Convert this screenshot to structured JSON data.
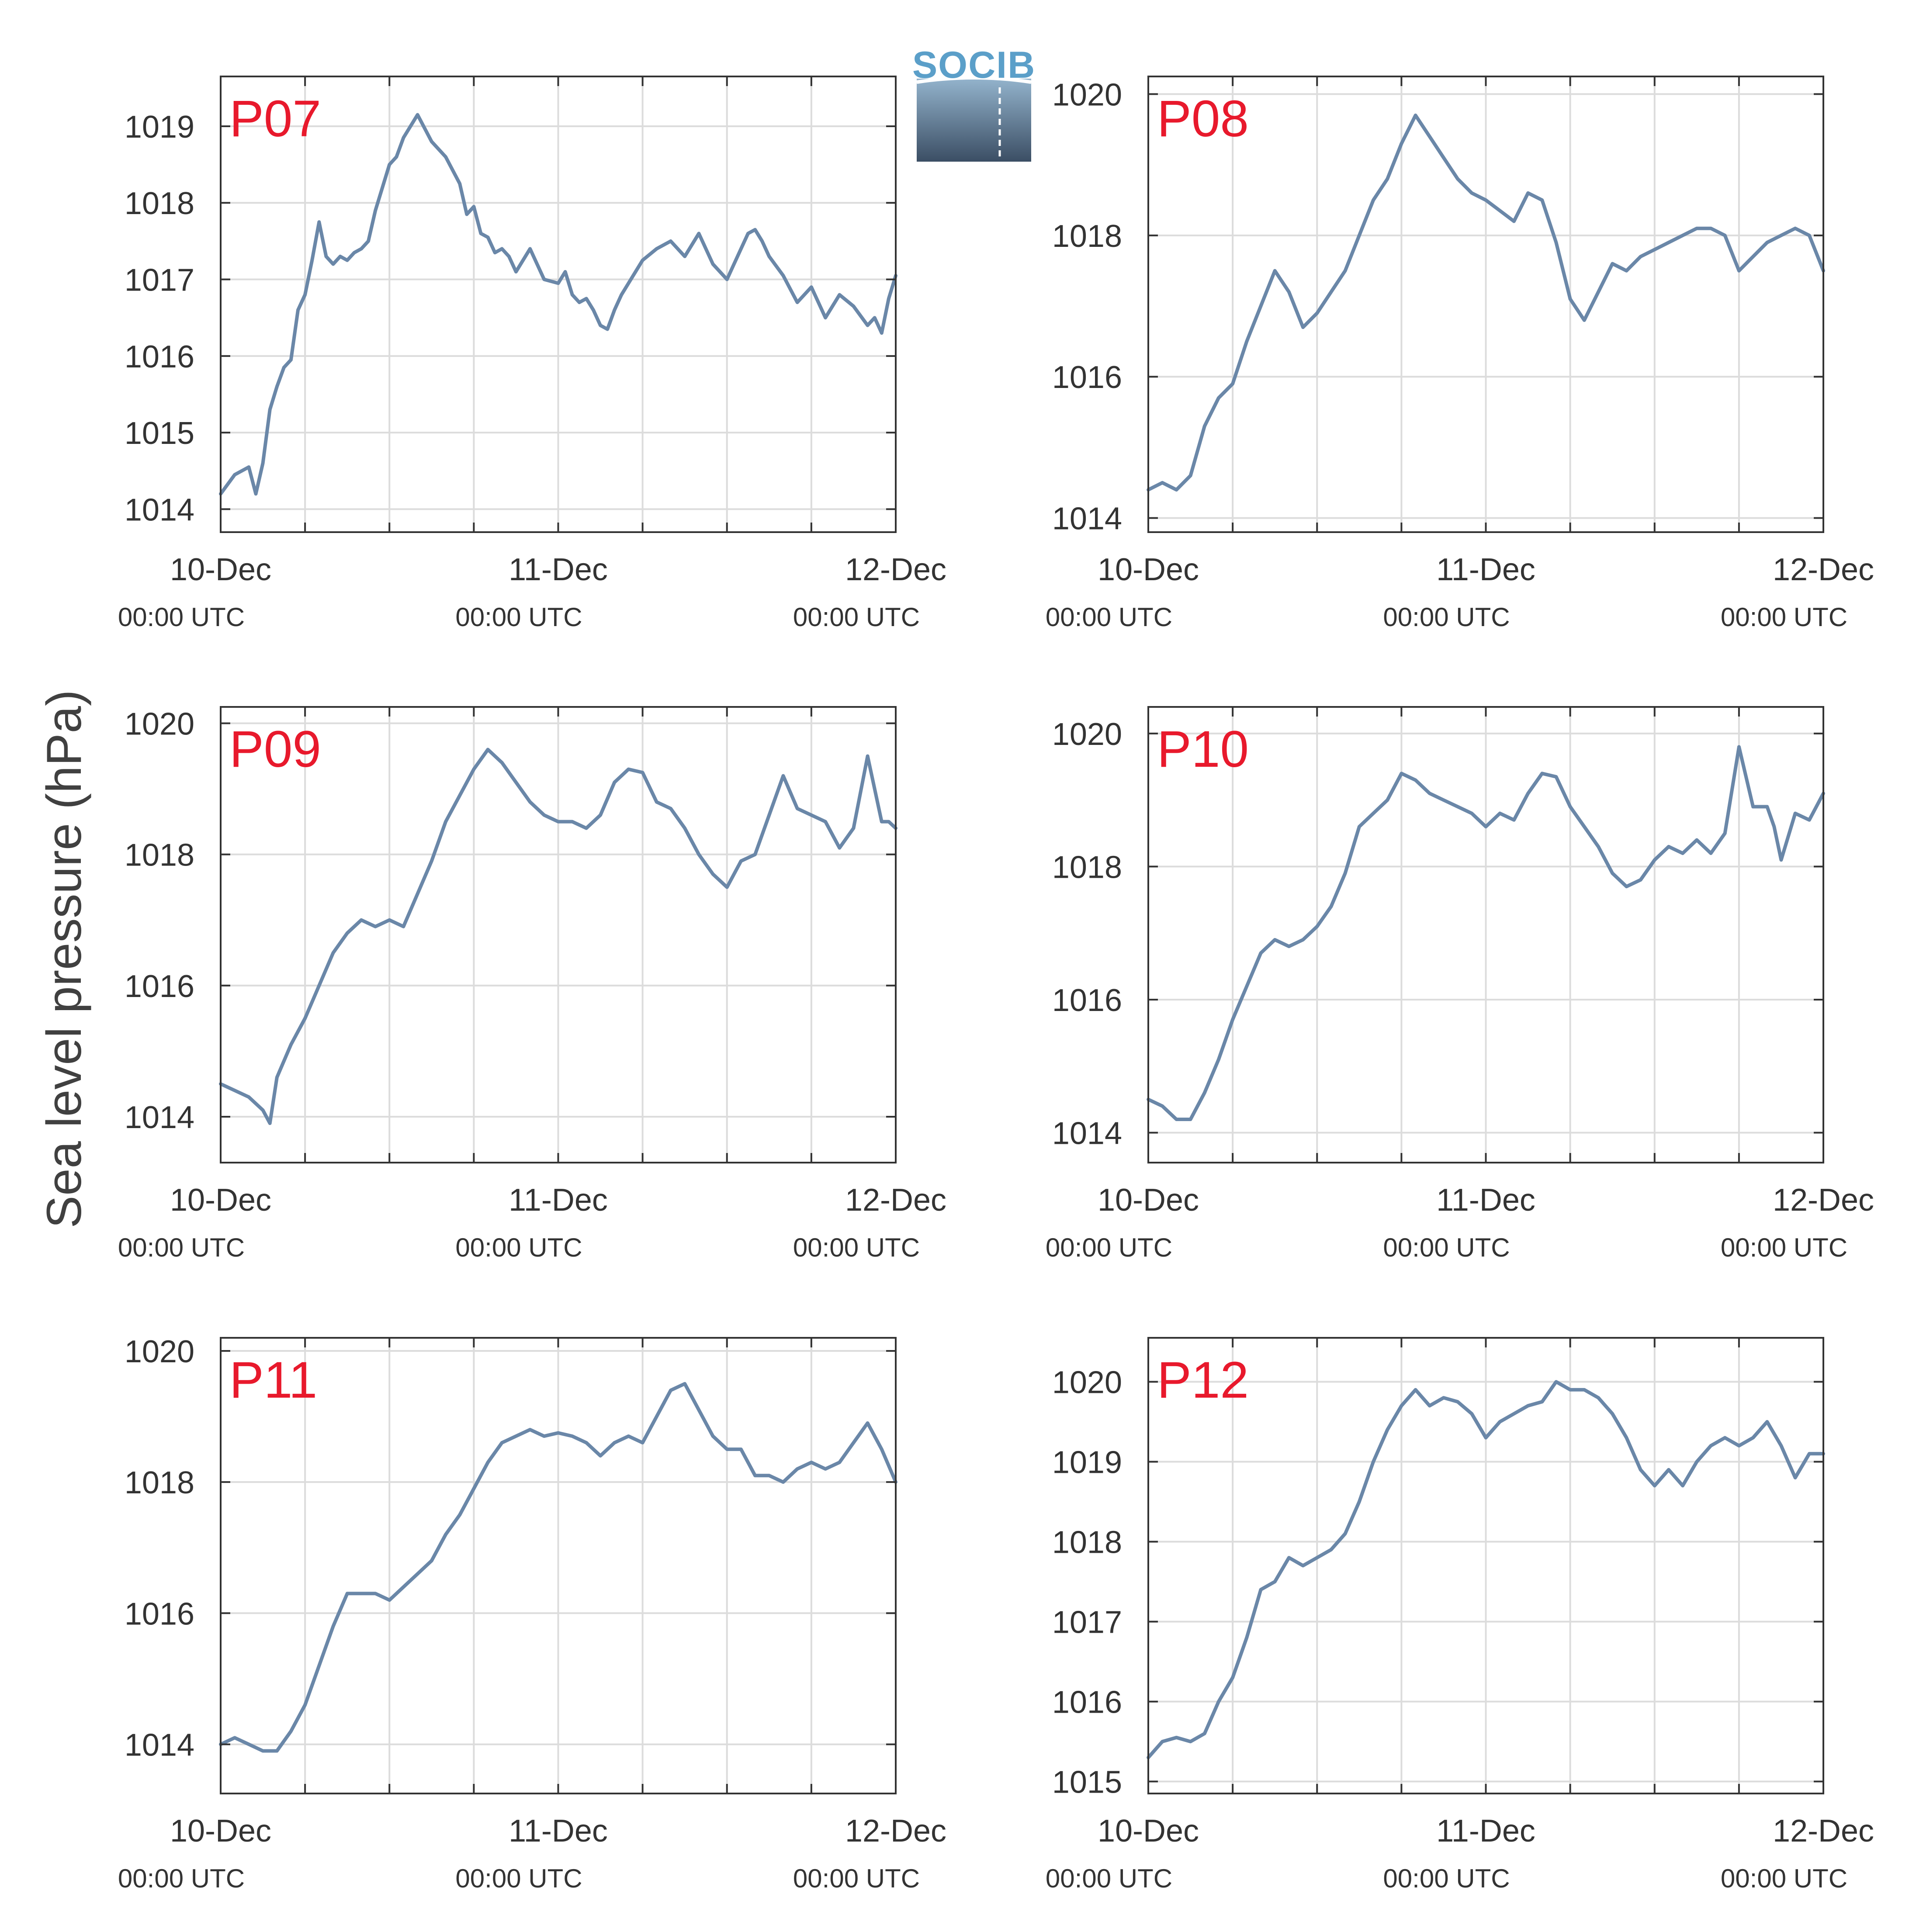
{
  "ylabel": "Sea level pressure (hPa)",
  "logo_text": "SOCIB",
  "colors": {
    "series": "#6a87a8",
    "panel_label": "#e8192c",
    "grid": "#dcdcdc",
    "axis": "#333333"
  },
  "chart_data": [
    {
      "type": "line",
      "label": "P07",
      "x_ticks": [
        {
          "date": "10-Dec",
          "time": "00:00 UTC"
        },
        {
          "date": "11-Dec",
          "time": "00:00 UTC"
        },
        {
          "date": "12-Dec",
          "time": "00:00 UTC"
        }
      ],
      "xlim_hours": [
        0,
        48
      ],
      "yticks": [
        1014,
        1015,
        1016,
        1017,
        1018,
        1019
      ],
      "ylim": [
        1013.7,
        1019.65
      ],
      "x": [
        0,
        1,
        2,
        2.5,
        3,
        3.5,
        4,
        4.5,
        5,
        5.5,
        6,
        6.5,
        7,
        7.5,
        8,
        8.5,
        9,
        9.5,
        10,
        10.5,
        11,
        11.5,
        12,
        12.5,
        13,
        14,
        15,
        16,
        17,
        17.5,
        18,
        18.5,
        19,
        19.5,
        20,
        20.5,
        21,
        22,
        23,
        24,
        24.5,
        25,
        25.5,
        26,
        26.5,
        27,
        27.5,
        28,
        28.5,
        29,
        29.5,
        30,
        31,
        32,
        33,
        34,
        35,
        35.5,
        36,
        36.5,
        37,
        37.5,
        38,
        38.5,
        39,
        40,
        41,
        42,
        43,
        44,
        45,
        46,
        46.5,
        47,
        47.5,
        48
      ],
      "y": [
        1014.2,
        1014.45,
        1014.55,
        1014.2,
        1014.6,
        1015.3,
        1015.6,
        1015.85,
        1015.95,
        1016.6,
        1016.8,
        1017.25,
        1017.75,
        1017.3,
        1017.2,
        1017.3,
        1017.25,
        1017.35,
        1017.4,
        1017.5,
        1017.9,
        1018.2,
        1018.5,
        1018.6,
        1018.85,
        1019.15,
        1018.8,
        1018.6,
        1018.25,
        1017.85,
        1017.95,
        1017.6,
        1017.55,
        1017.35,
        1017.4,
        1017.3,
        1017.1,
        1017.4,
        1017.0,
        1016.95,
        1017.1,
        1016.8,
        1016.7,
        1016.75,
        1016.6,
        1016.4,
        1016.35,
        1016.6,
        1016.8,
        1016.95,
        1017.1,
        1017.25,
        1017.4,
        1017.5,
        1017.3,
        1017.6,
        1017.2,
        1017.1,
        1017.0,
        1017.2,
        1017.4,
        1017.6,
        1017.65,
        1017.5,
        1017.3,
        1017.05,
        1016.7,
        1016.9,
        1016.5,
        1016.8,
        1016.65,
        1016.4,
        1016.5,
        1016.3,
        1016.75,
        1017.05
      ]
    },
    {
      "type": "line",
      "label": "P08",
      "x_ticks": [
        {
          "date": "10-Dec",
          "time": "00:00 UTC"
        },
        {
          "date": "11-Dec",
          "time": "00:00 UTC"
        },
        {
          "date": "12-Dec",
          "time": "00:00 UTC"
        }
      ],
      "xlim_hours": [
        0,
        48
      ],
      "yticks": [
        1014,
        1016,
        1018,
        1020
      ],
      "ylim": [
        1013.8,
        1020.25
      ],
      "x": [
        0,
        1,
        2,
        3,
        4,
        5,
        6,
        7,
        8,
        9,
        10,
        11,
        12,
        13,
        14,
        15,
        16,
        17,
        18,
        19,
        20,
        21,
        22,
        23,
        24,
        25,
        26,
        27,
        28,
        29,
        30,
        31,
        32,
        33,
        34,
        35,
        36,
        37,
        38,
        39,
        40,
        41,
        42,
        43,
        44,
        45,
        46,
        47,
        48
      ],
      "y": [
        1014.4,
        1014.5,
        1014.4,
        1014.6,
        1015.3,
        1015.7,
        1015.9,
        1016.5,
        1017.0,
        1017.5,
        1017.2,
        1016.7,
        1016.9,
        1017.2,
        1017.5,
        1018.0,
        1018.5,
        1018.8,
        1019.3,
        1019.7,
        1019.4,
        1019.1,
        1018.8,
        1018.6,
        1018.5,
        1018.35,
        1018.2,
        1018.6,
        1018.5,
        1017.9,
        1017.1,
        1016.8,
        1017.2,
        1017.6,
        1017.5,
        1017.7,
        1017.8,
        1017.9,
        1018.0,
        1018.1,
        1018.1,
        1018.0,
        1017.5,
        1017.7,
        1017.9,
        1018.0,
        1018.1,
        1018.0,
        1017.5
      ]
    },
    {
      "type": "line",
      "label": "P09",
      "x_ticks": [
        {
          "date": "10-Dec",
          "time": "00:00 UTC"
        },
        {
          "date": "11-Dec",
          "time": "00:00 UTC"
        },
        {
          "date": "12-Dec",
          "time": "00:00 UTC"
        }
      ],
      "xlim_hours": [
        0,
        48
      ],
      "yticks": [
        1014,
        1016,
        1018,
        1020
      ],
      "ylim": [
        1013.3,
        1020.25
      ],
      "x": [
        0,
        1,
        2,
        3,
        3.5,
        4,
        5,
        6,
        7,
        8,
        9,
        10,
        11,
        12,
        13,
        14,
        15,
        16,
        17,
        18,
        19,
        20,
        21,
        22,
        23,
        24,
        25,
        26,
        27,
        28,
        29,
        30,
        31,
        32,
        33,
        34,
        35,
        36,
        37,
        38,
        39,
        40,
        41,
        42,
        43,
        44,
        45,
        46,
        47,
        47.5,
        48
      ],
      "y": [
        1014.5,
        1014.4,
        1014.3,
        1014.1,
        1013.9,
        1014.6,
        1015.1,
        1015.5,
        1016.0,
        1016.5,
        1016.8,
        1017.0,
        1016.9,
        1017.0,
        1016.9,
        1017.4,
        1017.9,
        1018.5,
        1018.9,
        1019.3,
        1019.6,
        1019.4,
        1019.1,
        1018.8,
        1018.6,
        1018.5,
        1018.5,
        1018.4,
        1018.6,
        1019.1,
        1019.3,
        1019.25,
        1018.8,
        1018.7,
        1018.4,
        1018.0,
        1017.7,
        1017.5,
        1017.9,
        1018.0,
        1018.6,
        1019.2,
        1018.7,
        1018.6,
        1018.5,
        1018.1,
        1018.4,
        1019.5,
        1018.5,
        1018.5,
        1018.4
      ]
    },
    {
      "type": "line",
      "label": "P10",
      "x_ticks": [
        {
          "date": "10-Dec",
          "time": "00:00 UTC"
        },
        {
          "date": "11-Dec",
          "time": "00:00 UTC"
        },
        {
          "date": "12-Dec",
          "time": "00:00 UTC"
        }
      ],
      "xlim_hours": [
        0,
        48
      ],
      "yticks": [
        1014,
        1016,
        1018,
        1020
      ],
      "ylim": [
        1013.55,
        1020.4
      ],
      "x": [
        0,
        1,
        2,
        3,
        4,
        5,
        6,
        7,
        8,
        9,
        10,
        11,
        12,
        13,
        14,
        15,
        16,
        17,
        18,
        19,
        20,
        21,
        22,
        23,
        24,
        25,
        26,
        27,
        28,
        29,
        30,
        31,
        32,
        33,
        34,
        35,
        36,
        37,
        38,
        39,
        40,
        41,
        42,
        43,
        44,
        44.5,
        45,
        46,
        47,
        48
      ],
      "y": [
        1014.5,
        1014.4,
        1014.2,
        1014.2,
        1014.6,
        1015.1,
        1015.7,
        1016.2,
        1016.7,
        1016.9,
        1016.8,
        1016.9,
        1017.1,
        1017.4,
        1017.9,
        1018.6,
        1018.8,
        1019.0,
        1019.4,
        1019.3,
        1019.1,
        1019.0,
        1018.9,
        1018.8,
        1018.6,
        1018.8,
        1018.7,
        1019.1,
        1019.4,
        1019.35,
        1018.9,
        1018.6,
        1018.3,
        1017.9,
        1017.7,
        1017.8,
        1018.1,
        1018.3,
        1018.2,
        1018.4,
        1018.2,
        1018.5,
        1019.8,
        1018.9,
        1018.9,
        1018.6,
        1018.1,
        1018.8,
        1018.7,
        1019.1
      ]
    },
    {
      "type": "line",
      "label": "P11",
      "x_ticks": [
        {
          "date": "10-Dec",
          "time": "00:00 UTC"
        },
        {
          "date": "11-Dec",
          "time": "00:00 UTC"
        },
        {
          "date": "12-Dec",
          "time": "00:00 UTC"
        }
      ],
      "xlim_hours": [
        0,
        48
      ],
      "yticks": [
        1014,
        1016,
        1018,
        1020
      ],
      "ylim": [
        1013.25,
        1020.2
      ],
      "x": [
        0,
        1,
        2,
        3,
        4,
        5,
        6,
        7,
        8,
        9,
        10,
        11,
        12,
        13,
        14,
        15,
        16,
        17,
        18,
        19,
        20,
        21,
        22,
        23,
        24,
        25,
        26,
        27,
        28,
        29,
        30,
        31,
        32,
        33,
        34,
        35,
        36,
        37,
        38,
        39,
        40,
        41,
        42,
        43,
        44,
        45,
        46,
        47,
        48
      ],
      "y": [
        1014.0,
        1014.1,
        1014.0,
        1013.9,
        1013.9,
        1014.2,
        1014.6,
        1015.2,
        1015.8,
        1016.3,
        1016.3,
        1016.3,
        1016.2,
        1016.4,
        1016.6,
        1016.8,
        1017.2,
        1017.5,
        1017.9,
        1018.3,
        1018.6,
        1018.7,
        1018.8,
        1018.7,
        1018.75,
        1018.7,
        1018.6,
        1018.4,
        1018.6,
        1018.7,
        1018.6,
        1019.0,
        1019.4,
        1019.5,
        1019.1,
        1018.7,
        1018.5,
        1018.5,
        1018.1,
        1018.1,
        1018.0,
        1018.2,
        1018.3,
        1018.2,
        1018.3,
        1018.6,
        1018.9,
        1018.5,
        1018.0
      ]
    },
    {
      "type": "line",
      "label": "P12",
      "x_ticks": [
        {
          "date": "10-Dec",
          "time": "00:00 UTC"
        },
        {
          "date": "11-Dec",
          "time": "00:00 UTC"
        },
        {
          "date": "12-Dec",
          "time": "00:00 UTC"
        }
      ],
      "xlim_hours": [
        0,
        48
      ],
      "yticks": [
        1015,
        1016,
        1017,
        1018,
        1019,
        1020
      ],
      "ylim": [
        1014.85,
        1020.55
      ],
      "x": [
        0,
        1,
        2,
        3,
        4,
        5,
        6,
        7,
        8,
        9,
        10,
        11,
        12,
        13,
        14,
        15,
        16,
        17,
        18,
        19,
        20,
        21,
        22,
        23,
        24,
        25,
        26,
        27,
        28,
        29,
        30,
        31,
        32,
        33,
        34,
        35,
        36,
        37,
        38,
        39,
        40,
        41,
        42,
        43,
        44,
        45,
        46,
        47,
        48
      ],
      "y": [
        1015.3,
        1015.5,
        1015.55,
        1015.5,
        1015.6,
        1016.0,
        1016.3,
        1016.8,
        1017.4,
        1017.5,
        1017.8,
        1017.7,
        1017.8,
        1017.9,
        1018.1,
        1018.5,
        1019.0,
        1019.4,
        1019.7,
        1019.9,
        1019.7,
        1019.8,
        1019.75,
        1019.6,
        1019.3,
        1019.5,
        1019.6,
        1019.7,
        1019.75,
        1020.0,
        1019.9,
        1019.9,
        1019.8,
        1019.6,
        1019.3,
        1018.9,
        1018.7,
        1018.9,
        1018.7,
        1019.0,
        1019.2,
        1019.3,
        1019.2,
        1019.3,
        1019.5,
        1019.2,
        1018.8,
        1019.1,
        1019.1
      ]
    }
  ]
}
